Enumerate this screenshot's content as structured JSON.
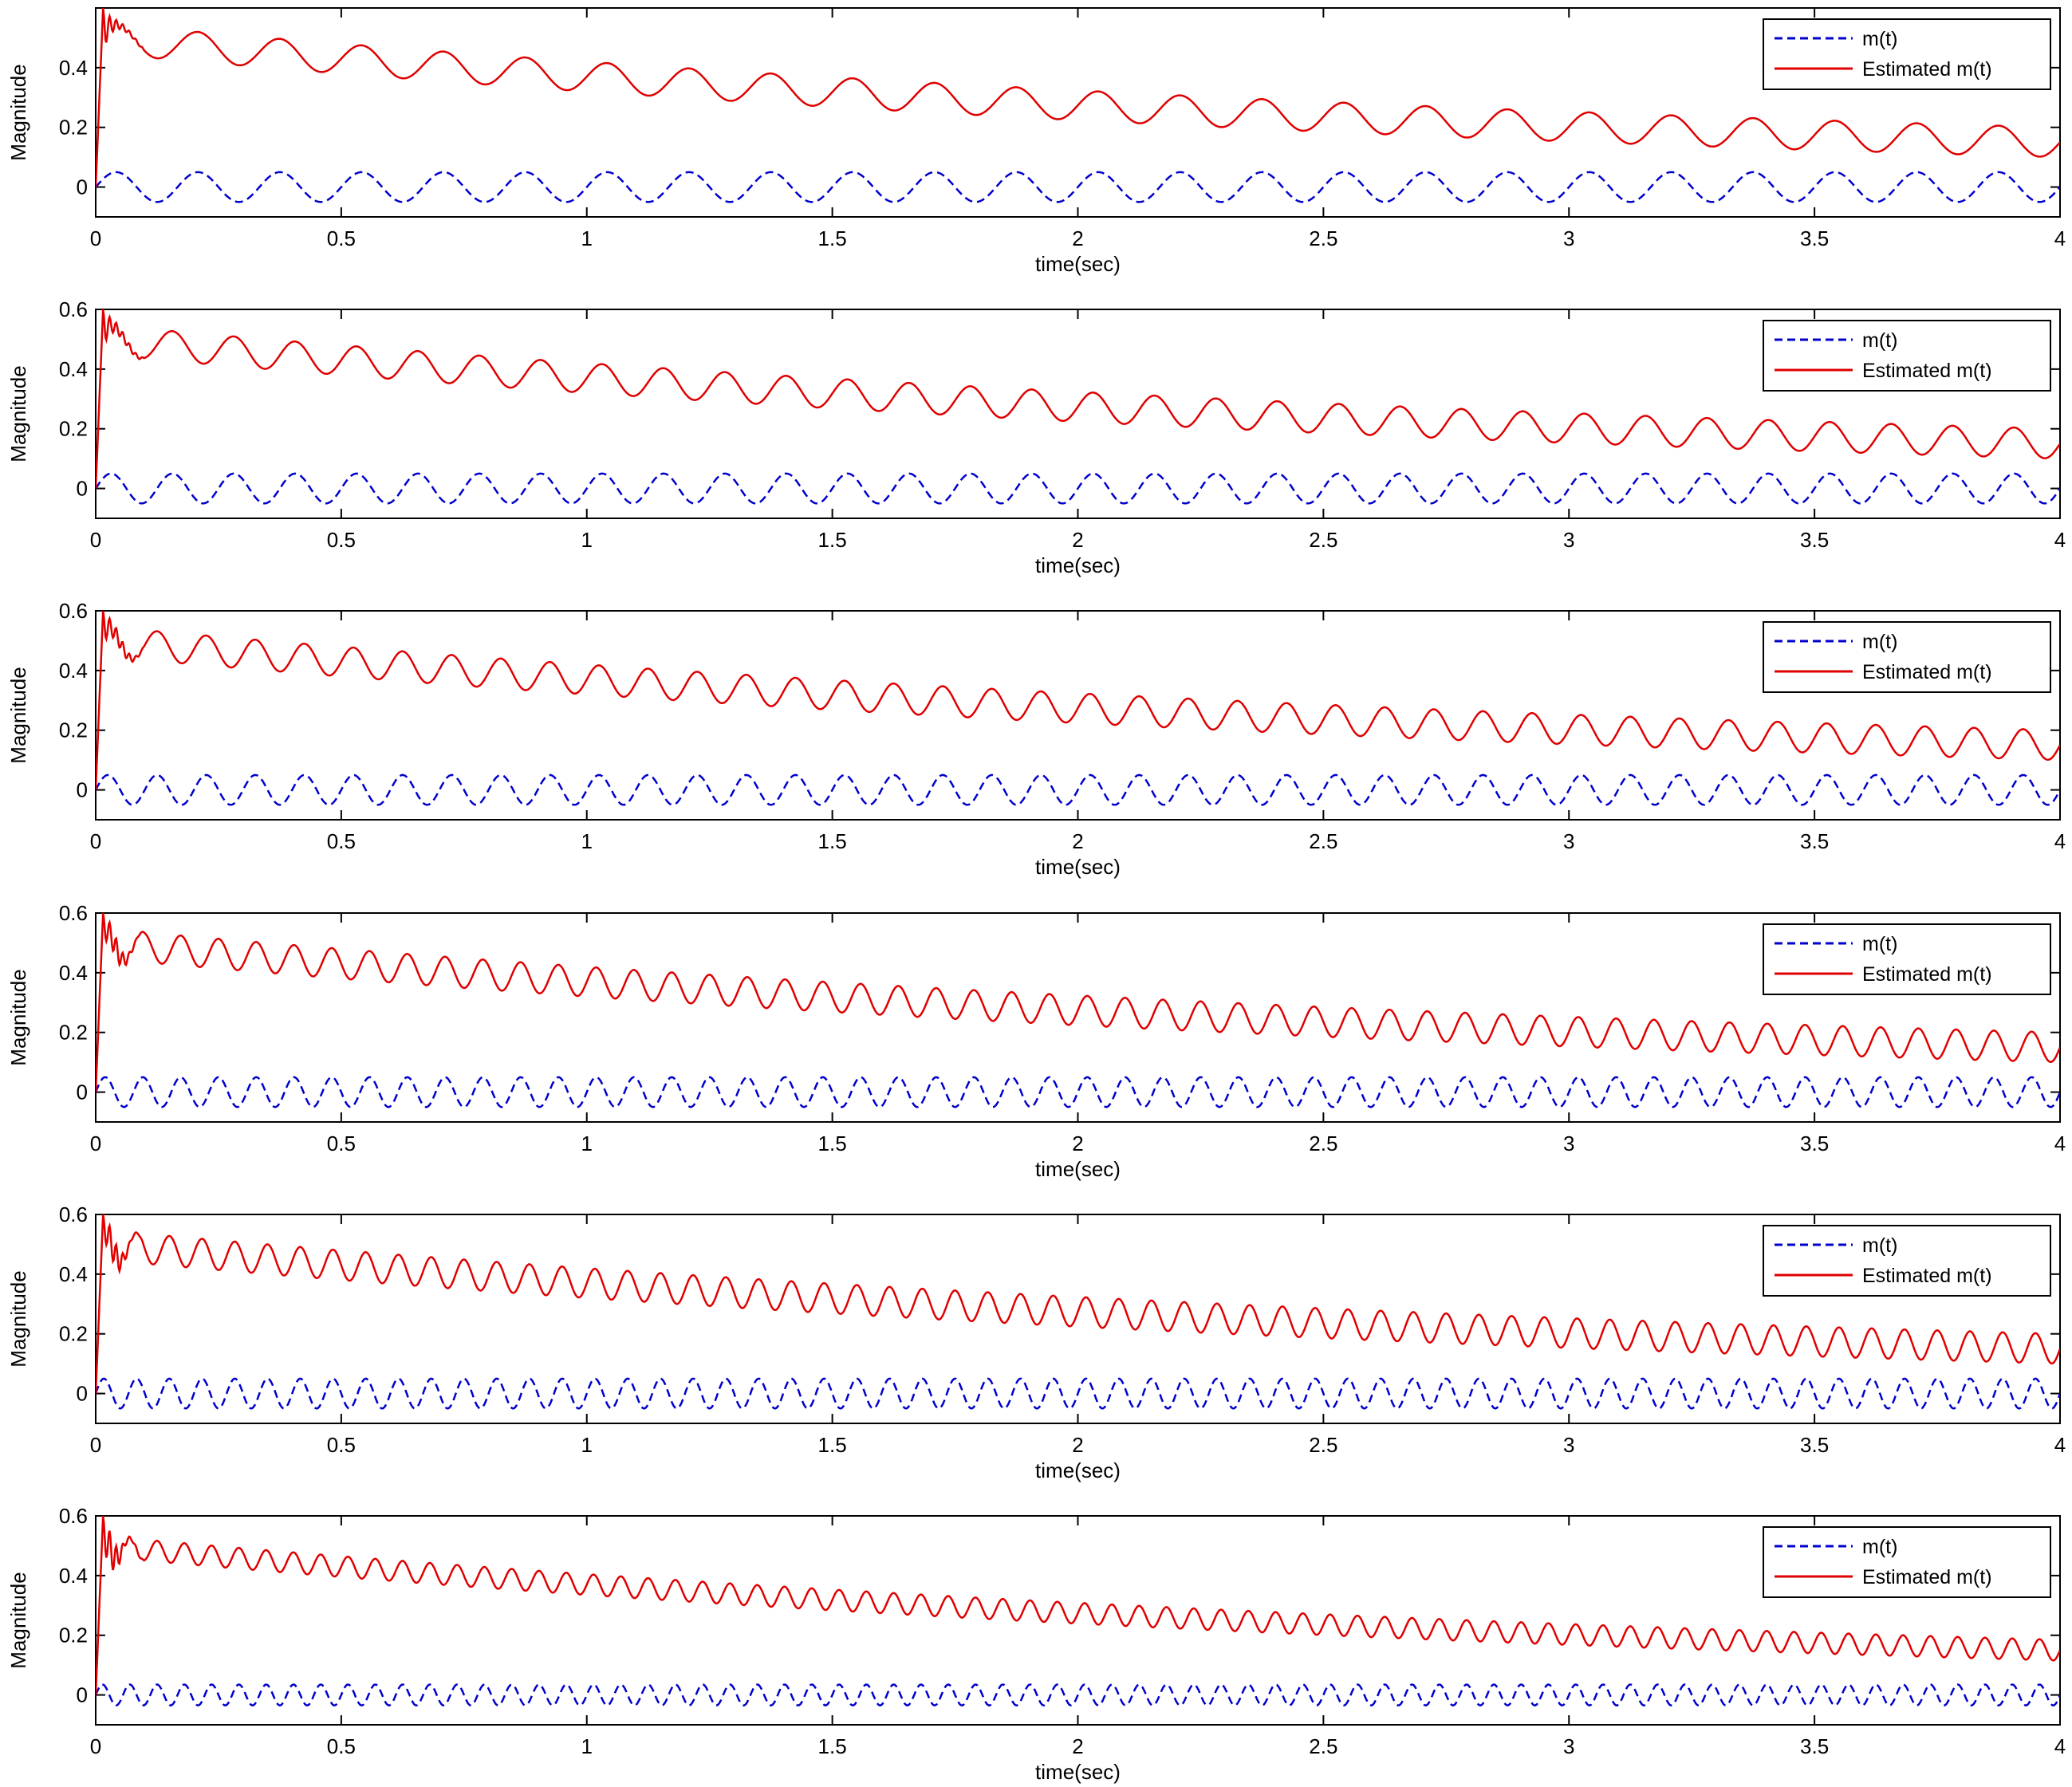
{
  "figure": {
    "colors": {
      "background": "#ffffff",
      "axes": "#000000",
      "series_true": "#0000cc",
      "series_estimated": "#e00000"
    }
  },
  "chart_data": [
    {
      "type": "line",
      "xlabel": "time(sec)",
      "ylabel": "Magnitude",
      "xlim": [
        0,
        4
      ],
      "ylim": [
        -0.1,
        0.6
      ],
      "xticks": [
        0,
        0.5,
        1,
        1.5,
        2,
        2.5,
        3,
        3.5,
        4
      ],
      "xtick_labels": [
        "0",
        "0.5",
        "1",
        "1.5",
        "2",
        "2.5",
        "3",
        "3.5",
        "4"
      ],
      "yticks": [
        0,
        0.2,
        0.4
      ],
      "ytick_labels": [
        "0",
        "0.2",
        "0.4"
      ],
      "legend": {
        "location": "top-right",
        "entries": [
          "m(t)",
          "Estimated m(t)"
        ]
      },
      "series": [
        {
          "name": "m(t)",
          "style": "dashed",
          "color": "#0000cc",
          "function": "sine",
          "amplitude": 0.05,
          "frequency_hz": 6,
          "offset": 0
        },
        {
          "name": "Estimated m(t)",
          "style": "solid",
          "color": "#e00000",
          "function": "decaying_sine",
          "start": 0.5,
          "end": 0.15,
          "amplitude": 0.05,
          "frequency_hz": 6,
          "initial_peak": 0.6
        }
      ]
    },
    {
      "type": "line",
      "xlabel": "time(sec)",
      "ylabel": "Magnitude",
      "xlim": [
        0,
        4
      ],
      "ylim": [
        -0.1,
        0.6
      ],
      "xticks": [
        0,
        0.5,
        1,
        1.5,
        2,
        2.5,
        3,
        3.5,
        4
      ],
      "xtick_labels": [
        "0",
        "0.5",
        "1",
        "1.5",
        "2",
        "2.5",
        "3",
        "3.5",
        "4"
      ],
      "yticks": [
        0,
        0.2,
        0.4,
        0.6
      ],
      "ytick_labels": [
        "0",
        "0.2",
        "0.4",
        "0.6"
      ],
      "legend": {
        "location": "top-right",
        "entries": [
          "m(t)",
          "Estimated m(t)"
        ]
      },
      "series": [
        {
          "name": "m(t)",
          "style": "dashed",
          "color": "#0000cc",
          "function": "sine",
          "amplitude": 0.05,
          "frequency_hz": 8,
          "offset": 0
        },
        {
          "name": "Estimated m(t)",
          "style": "solid",
          "color": "#e00000",
          "function": "decaying_sine",
          "start": 0.5,
          "end": 0.15,
          "amplitude": 0.05,
          "frequency_hz": 8,
          "initial_peak": 0.6
        }
      ]
    },
    {
      "type": "line",
      "xlabel": "time(sec)",
      "ylabel": "Magnitude",
      "xlim": [
        0,
        4
      ],
      "ylim": [
        -0.1,
        0.6
      ],
      "xticks": [
        0,
        0.5,
        1,
        1.5,
        2,
        2.5,
        3,
        3.5,
        4
      ],
      "xtick_labels": [
        "0",
        "0.5",
        "1",
        "1.5",
        "2",
        "2.5",
        "3",
        "3.5",
        "4"
      ],
      "yticks": [
        0,
        0.2,
        0.4,
        0.6
      ],
      "ytick_labels": [
        "0",
        "0.2",
        "0.4",
        "0.6"
      ],
      "legend": {
        "location": "top-right",
        "entries": [
          "m(t)",
          "Estimated m(t)"
        ]
      },
      "series": [
        {
          "name": "m(t)",
          "style": "dashed",
          "color": "#0000cc",
          "function": "sine",
          "amplitude": 0.05,
          "frequency_hz": 10,
          "offset": 0
        },
        {
          "name": "Estimated m(t)",
          "style": "solid",
          "color": "#e00000",
          "function": "decaying_sine",
          "start": 0.5,
          "end": 0.15,
          "amplitude": 0.05,
          "frequency_hz": 10,
          "initial_peak": 0.6
        }
      ]
    },
    {
      "type": "line",
      "xlabel": "time(sec)",
      "ylabel": "Magnitude",
      "xlim": [
        0,
        4
      ],
      "ylim": [
        -0.1,
        0.6
      ],
      "xticks": [
        0,
        0.5,
        1,
        1.5,
        2,
        2.5,
        3,
        3.5,
        4
      ],
      "xtick_labels": [
        "0",
        "0.5",
        "1",
        "1.5",
        "2",
        "2.5",
        "3",
        "3.5",
        "4"
      ],
      "yticks": [
        0,
        0.2,
        0.4,
        0.6
      ],
      "ytick_labels": [
        "0",
        "0.2",
        "0.4",
        "0.6"
      ],
      "legend": {
        "location": "top-right",
        "entries": [
          "m(t)",
          "Estimated m(t)"
        ]
      },
      "series": [
        {
          "name": "m(t)",
          "style": "dashed",
          "color": "#0000cc",
          "function": "sine",
          "amplitude": 0.05,
          "frequency_hz": 13,
          "offset": 0
        },
        {
          "name": "Estimated m(t)",
          "style": "solid",
          "color": "#e00000",
          "function": "decaying_sine",
          "start": 0.5,
          "end": 0.15,
          "amplitude": 0.05,
          "frequency_hz": 13,
          "initial_peak": 0.6
        }
      ]
    },
    {
      "type": "line",
      "xlabel": "time(sec)",
      "ylabel": "Magnitude",
      "xlim": [
        0,
        4
      ],
      "ylim": [
        -0.1,
        0.6
      ],
      "xticks": [
        0,
        0.5,
        1,
        1.5,
        2,
        2.5,
        3,
        3.5,
        4
      ],
      "xtick_labels": [
        "0",
        "0.5",
        "1",
        "1.5",
        "2",
        "2.5",
        "3",
        "3.5",
        "4"
      ],
      "yticks": [
        0,
        0.2,
        0.4,
        0.6
      ],
      "ytick_labels": [
        "0",
        "0.2",
        "0.4",
        "0.6"
      ],
      "legend": {
        "location": "top-right",
        "entries": [
          "m(t)",
          "Estimated m(t)"
        ]
      },
      "series": [
        {
          "name": "m(t)",
          "style": "dashed",
          "color": "#0000cc",
          "function": "sine",
          "amplitude": 0.05,
          "frequency_hz": 15,
          "offset": 0
        },
        {
          "name": "Estimated m(t)",
          "style": "solid",
          "color": "#e00000",
          "function": "decaying_sine",
          "start": 0.5,
          "end": 0.15,
          "amplitude": 0.05,
          "frequency_hz": 15,
          "initial_peak": 0.6
        }
      ]
    },
    {
      "type": "line",
      "xlabel": "time(sec)",
      "ylabel": "Magnitude",
      "xlim": [
        0,
        4
      ],
      "ylim": [
        -0.1,
        0.6
      ],
      "xticks": [
        0,
        0.5,
        1,
        1.5,
        2,
        2.5,
        3,
        3.5,
        4
      ],
      "xtick_labels": [
        "0",
        "0.5",
        "1",
        "1.5",
        "2",
        "2.5",
        "3",
        "3.5",
        "4"
      ],
      "yticks": [
        0,
        0.2,
        0.4,
        0.6
      ],
      "ytick_labels": [
        "0",
        "0.2",
        "0.4",
        "0.6"
      ],
      "legend": {
        "location": "top-right",
        "entries": [
          "m(t)",
          "Estimated m(t)"
        ]
      },
      "series": [
        {
          "name": "m(t)",
          "style": "dashed",
          "color": "#0000cc",
          "function": "sine",
          "amplitude": 0.035,
          "frequency_hz": 18,
          "offset": 0
        },
        {
          "name": "Estimated m(t)",
          "style": "solid",
          "color": "#e00000",
          "function": "decaying_sine",
          "start": 0.5,
          "end": 0.15,
          "amplitude": 0.035,
          "frequency_hz": 18,
          "initial_peak": 0.6
        }
      ]
    }
  ]
}
